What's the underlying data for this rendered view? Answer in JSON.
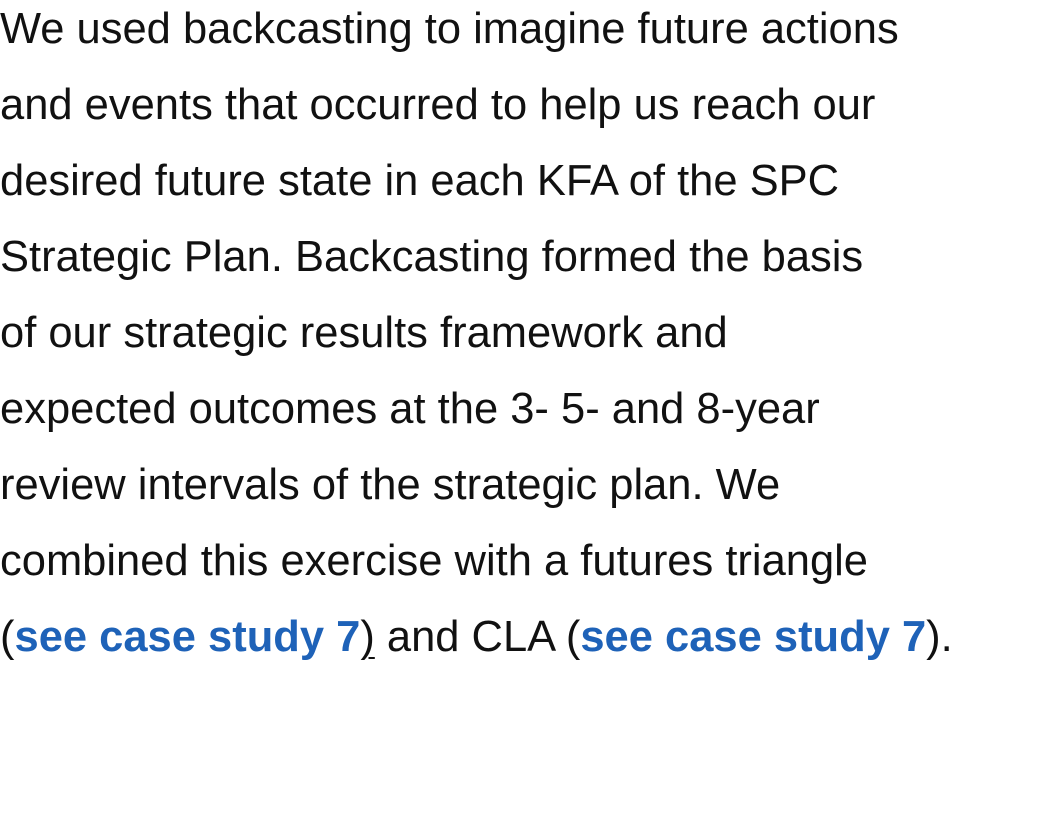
{
  "paragraph": {
    "lines": [
      "We used backcasting to imagine future actions",
      "and events that occurred to help us reach our",
      "desired future state in each KFA of the SPC",
      "Strategic Plan. Backcasting formed the basis",
      "of our strategic results framework and",
      "expected outcomes at the 3- 5- and 8-year",
      "review intervals of the strategic plan. We",
      "combined this exercise with a futures triangle"
    ],
    "last_line": {
      "open_paren_1": "(",
      "link_1": "see case study 7",
      "close_paren_1": ")",
      "middle": " and CLA (",
      "link_2": "see case study 7",
      "end": ")."
    }
  },
  "colors": {
    "text": "#111111",
    "link": "#1e62b8",
    "background": "#ffffff"
  }
}
